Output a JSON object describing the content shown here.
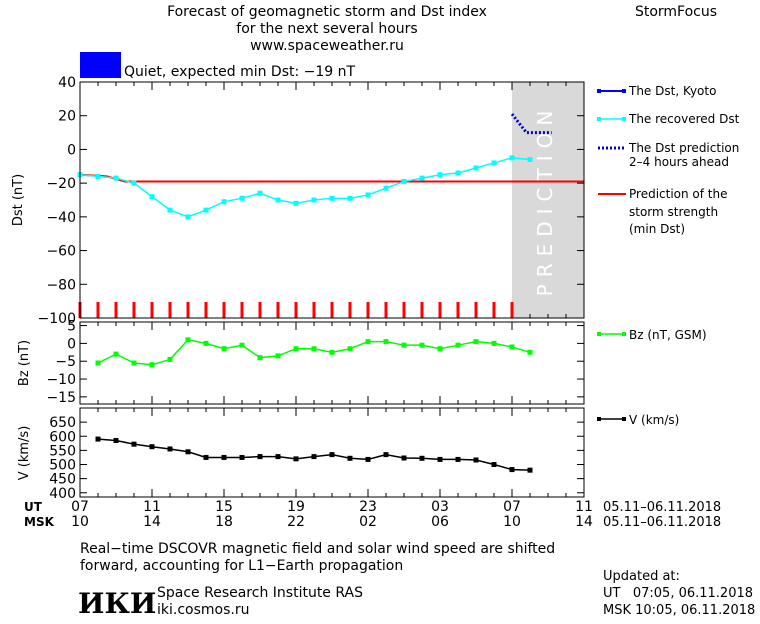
{
  "header": {
    "title_lines": [
      "Forecast of geomagnetic storm and Dst index",
      "for the next several hours",
      "www.spaceweather.ru"
    ],
    "brand": "StormFocus",
    "status_text": "Quiet, expected min Dst: −19 nT",
    "status_color": "#0000FF"
  },
  "prediction_label": "PREDICTION",
  "legend": {
    "dst_kyoto": "The Dst, Kyoto",
    "dst_recovered": "The recovered Dst",
    "dst_prediction": [
      "The Dst prediction",
      "2–4 hours ahead"
    ],
    "storm_strength": [
      "Prediction of the",
      "storm strength",
      "(min Dst)"
    ],
    "bz": "Bz (nT, GSM)",
    "v": "V (km/s)"
  },
  "time_axis": {
    "ut_label": "UT",
    "msk_label": "MSK",
    "ut_ticks": [
      "07",
      "11",
      "15",
      "19",
      "23",
      "03",
      "07",
      "11"
    ],
    "msk_ticks": [
      "10",
      "14",
      "18",
      "22",
      "02",
      "06",
      "10",
      "14"
    ],
    "date_range_ut": "05.11–06.11.2018",
    "date_range_msk": "05.11–06.11.2018"
  },
  "footer": {
    "note_lines": [
      "Real−time DSCOVR magnetic field and solar wind speed are shifted",
      "forward, accounting for L1−Earth propagation"
    ],
    "logo_text": "ИКИ",
    "institute": "Space Research Institute RAS",
    "site": "iki.cosmos.ru",
    "updated_label": "Updated at:",
    "updated_ut": "UT   07:05, 06.11.2018",
    "updated_msk": "MSK 10:05, 06.11.2018"
  },
  "colors": {
    "kyoto": "#0000FF",
    "recovered": "#00FFFF",
    "prediction": "#0000CC",
    "min_dst": "#FF0000",
    "bz": "#00FF00",
    "v": "#000000",
    "prediction_zone": "#D9D9D9"
  },
  "chart_data": [
    {
      "type": "line",
      "ylabel": "Dst (nT)",
      "ylim": [
        -100,
        40
      ],
      "yticks": [
        40,
        20,
        0,
        -20,
        -40,
        -60,
        -80,
        -100
      ],
      "x_unit": "hours since 05.11.2018 07:00 UT",
      "xlim": [
        0,
        28
      ],
      "prediction_zone_start": 24,
      "series": [
        {
          "name": "The recovered Dst",
          "x": [
            0,
            1,
            2,
            3,
            4,
            5,
            6,
            7,
            8,
            9,
            10,
            11,
            12,
            13,
            14,
            15,
            16,
            17,
            18,
            19,
            20,
            21,
            22,
            23,
            24,
            25
          ],
          "y": [
            -15,
            -16,
            -17,
            -20,
            -28,
            -36,
            -40,
            -36,
            -31,
            -29,
            -26,
            -30,
            -32,
            -30,
            -29,
            -29,
            -27,
            -23,
            -19,
            -17,
            -15,
            -14,
            -11,
            -8,
            -5,
            -6
          ]
        },
        {
          "name": "The Dst prediction 2–4 hours ahead",
          "x": [
            24,
            24.8,
            26.2
          ],
          "y": [
            21,
            10,
            10
          ]
        },
        {
          "name": "Prediction of the storm strength (min Dst)",
          "x": [
            0,
            1.5,
            2.5,
            28
          ],
          "y": [
            -15,
            -16,
            -19,
            -19
          ]
        }
      ],
      "red_ticks_x": [
        0,
        1,
        2,
        3,
        4,
        5,
        6,
        7,
        8,
        9,
        10,
        11,
        12,
        13,
        14,
        15,
        16,
        17,
        18,
        19,
        20,
        21,
        22,
        23,
        24
      ]
    },
    {
      "type": "line",
      "ylabel": "Bz (nT)",
      "ylim": [
        -17,
        6
      ],
      "yticks": [
        5,
        0,
        -5,
        -10,
        -15
      ],
      "series": [
        {
          "name": "Bz (nT, GSM)",
          "x": [
            1,
            2,
            3,
            4,
            5,
            6,
            7,
            8,
            9,
            10,
            11,
            12,
            13,
            14,
            15,
            16,
            17,
            18,
            19,
            20,
            21,
            22,
            23,
            24,
            25
          ],
          "y": [
            -5.5,
            -3,
            -5.5,
            -6,
            -4.5,
            1,
            0,
            -1.5,
            -0.5,
            -4,
            -3.5,
            -1.5,
            -1.5,
            -2.5,
            -1.5,
            0.5,
            0.5,
            -0.5,
            -0.5,
            -1.5,
            -0.5,
            0.5,
            0,
            -1,
            -2.5
          ]
        }
      ]
    },
    {
      "type": "line",
      "ylabel": "V (km/s)",
      "ylim": [
        385,
        700
      ],
      "yticks": [
        650,
        600,
        550,
        500,
        450,
        400
      ],
      "series": [
        {
          "name": "V (km/s)",
          "x": [
            1,
            2,
            3,
            4,
            5,
            6,
            7,
            8,
            9,
            10,
            11,
            12,
            13,
            14,
            15,
            16,
            17,
            18,
            19,
            20,
            21,
            22,
            23,
            24,
            25
          ],
          "y": [
            590,
            585,
            572,
            563,
            555,
            545,
            525,
            525,
            525,
            528,
            528,
            520,
            528,
            535,
            522,
            518,
            535,
            523,
            522,
            518,
            518,
            516,
            500,
            482,
            480
          ]
        }
      ]
    }
  ]
}
